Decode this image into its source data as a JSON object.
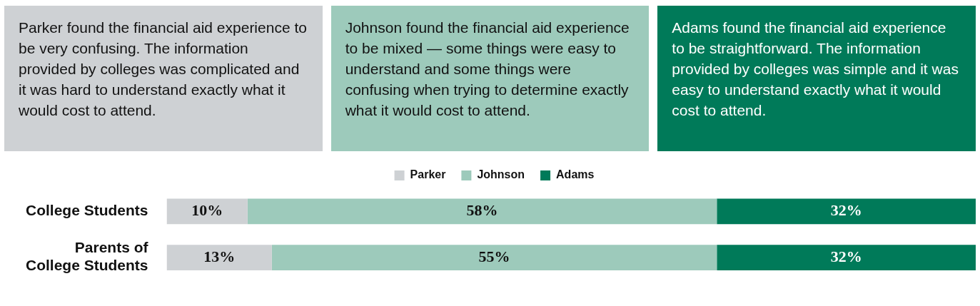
{
  "chart_data": {
    "type": "bar",
    "orientation": "horizontal",
    "stacked": true,
    "legend": "top",
    "tick_labels": "y",
    "annotations": [
      "Parker found the financial aid experience to be very confusing. The information provided by colleges was complicated and it was hard to understand exactly what it would cost to attend.",
      "Johnson found the financial aid experience to be mixed — some things were easy to understand and some things were confusing when trying to determine exactly what it would cost to attend.",
      "Adams found the financial aid experience to be straightforward. The information provided by colleges was simple and it was easy to understand exactly what it would cost to attend."
    ],
    "categories": [
      "College Students",
      "Parents of College Students"
    ],
    "xlim": [
      0,
      100
    ],
    "series": [
      {
        "name": "Parker",
        "color": "#ced1d4",
        "values": [
          10,
          13
        ],
        "value_labels": [
          "10%",
          "13%"
        ]
      },
      {
        "name": "Johnson",
        "color": "#9dcabb",
        "values": [
          58,
          55
        ],
        "value_labels": [
          "58%",
          "55%"
        ]
      },
      {
        "name": "Adams",
        "color": "#007a59",
        "values": [
          32,
          32
        ],
        "value_labels": [
          "32%",
          "32%"
        ]
      }
    ]
  }
}
